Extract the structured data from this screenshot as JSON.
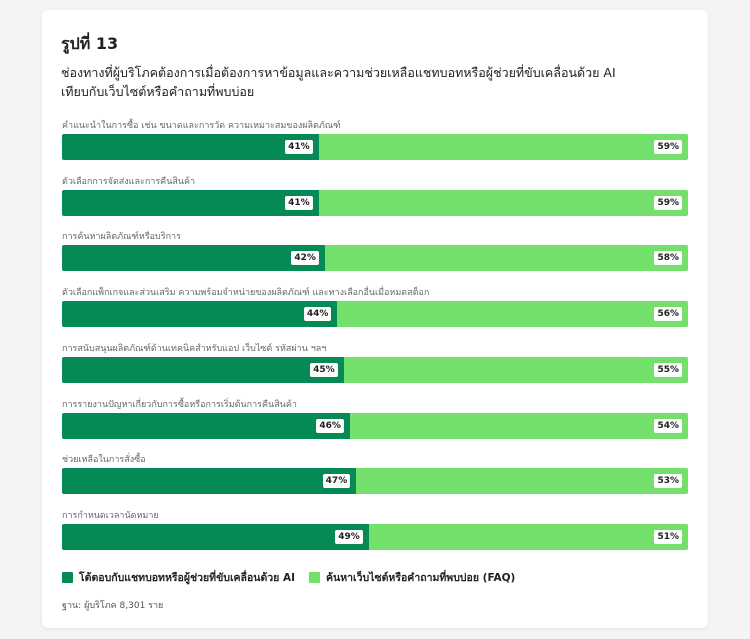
{
  "figure_label": "รูปที่ 13",
  "subtitle": "ช่องทางที่ผู้บริโภคต้องการเมื่อต้องการหาข้อมูลและความช่วยเหลือแชทบอทหรือผู้ช่วยที่ขับเคลื่อนด้วย AI เทียบกับเว็บไซต์หรือคำถามที่พบบ่อย",
  "base_note": "ฐาน: ผู้บริโภค 8,301 ราย",
  "colors": {
    "ai": "#068a55",
    "faq": "#72e06a"
  },
  "chart_data": {
    "type": "bar",
    "stacked": true,
    "orientation": "horizontal",
    "unit": "%",
    "categories": [
      "คำแนะนำในการซื้อ เช่น ขนาดและการวัด ความเหมาะสมของผลิตภัณฑ์",
      "ตัวเลือกการจัดส่งและการคืนสินค้า",
      "การค้นหาผลิตภัณฑ์หรือบริการ",
      "ตัวเลือกแพ็กเกจและส่วนเสริม ความพร้อมจำหน่ายของผลิตภัณฑ์ และทางเลือกอื่นเมื่อหมดสต็อก",
      "การสนับสนุนผลิตภัณฑ์ด้านเทคนิคสำหรับแอป เว็บไซต์ รหัสผ่าน ฯลฯ",
      "การรายงานปัญหาเกี่ยวกับการซื้อหรือการเริ่มต้นการคืนสินค้า",
      "ช่วยเหลือในการสั่งซื้อ",
      "การกำหนดเวลานัดหมาย"
    ],
    "series": [
      {
        "name": "โต้ตอบกับแชทบอทหรือผู้ช่วยที่ขับเคลื่อนด้วย AI",
        "values": [
          41,
          41,
          42,
          44,
          45,
          46,
          47,
          49
        ]
      },
      {
        "name": "ค้นหาเว็บไซต์หรือคำถามที่พบบ่อย (FAQ)",
        "values": [
          59,
          59,
          58,
          56,
          55,
          54,
          53,
          51
        ]
      }
    ],
    "xlim": [
      0,
      100
    ],
    "legend": "bottom"
  }
}
